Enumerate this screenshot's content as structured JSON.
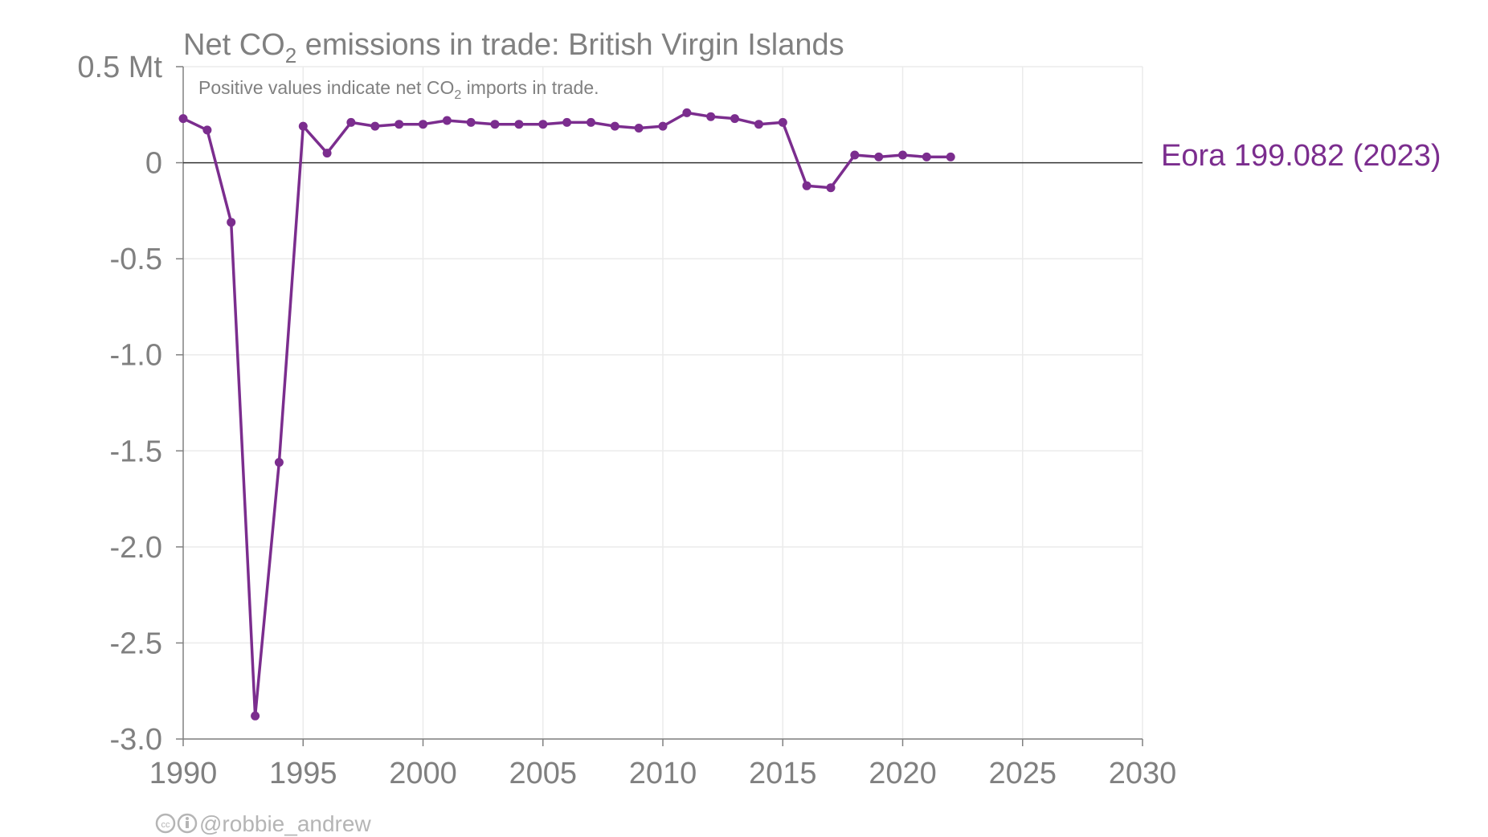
{
  "chart_data": {
    "type": "line",
    "title_prefix": "Net CO",
    "title_sub": "2",
    "title_suffix": " emissions in trade: British Virgin Islands",
    "subtitle_prefix": "Positive values indicate net CO",
    "subtitle_sub": "2",
    "subtitle_suffix": " imports in trade.",
    "y_unit_label": "0.5 Mt",
    "y_ticks": [
      0.5,
      0,
      -0.5,
      -1.0,
      -1.5,
      -2.0,
      -2.5,
      -3.0
    ],
    "y_tick_labels": [
      "0.5 Mt",
      "0",
      "-0.5",
      "-1.0",
      "-1.5",
      "-2.0",
      "-2.5",
      "-3.0"
    ],
    "ylim": [
      -3.0,
      0.5
    ],
    "x_ticks": [
      1990,
      1995,
      2000,
      2005,
      2010,
      2015,
      2020,
      2025,
      2030
    ],
    "x_tick_labels": [
      "1990",
      "1995",
      "2000",
      "2005",
      "2010",
      "2015",
      "2020",
      "2025",
      "2030"
    ],
    "xlim": [
      1990,
      2030
    ],
    "grid": true,
    "series": [
      {
        "name": "Eora",
        "color": "#7B2D8E",
        "label": "Eora 199.082 (2023)",
        "x": [
          1990,
          1991,
          1992,
          1993,
          1994,
          1995,
          1996,
          1997,
          1998,
          1999,
          2000,
          2001,
          2002,
          2003,
          2004,
          2005,
          2006,
          2007,
          2008,
          2009,
          2010,
          2011,
          2012,
          2013,
          2014,
          2015,
          2016,
          2017,
          2018,
          2019,
          2020,
          2021,
          2022
        ],
        "y": [
          0.23,
          0.17,
          -0.31,
          -2.88,
          -1.56,
          0.19,
          0.05,
          0.21,
          0.19,
          0.2,
          0.2,
          0.22,
          0.21,
          0.2,
          0.2,
          0.2,
          0.21,
          0.21,
          0.19,
          0.18,
          0.19,
          0.26,
          0.24,
          0.23,
          0.2,
          0.21,
          -0.12,
          -0.13,
          0.04,
          0.03,
          0.04,
          0.03,
          0.03
        ]
      }
    ]
  },
  "credit": "@robbie_andrew",
  "colors": {
    "axis": "#808080",
    "grid": "#ebebeb",
    "zero_line": "#333333",
    "series": "#7B2D8E"
  }
}
